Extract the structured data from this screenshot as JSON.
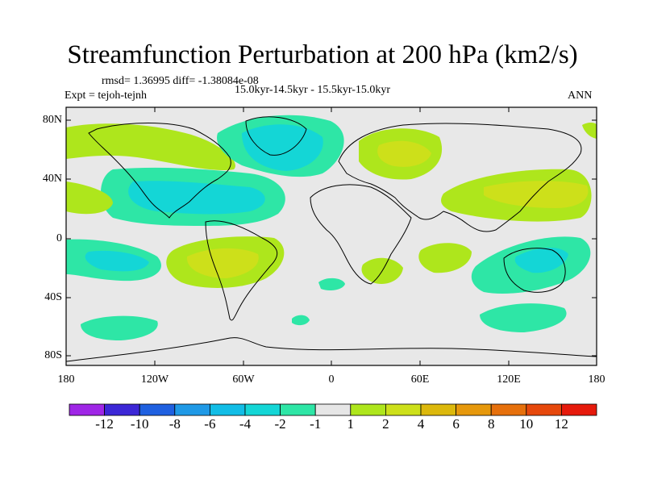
{
  "title": "Streamfunction Perturbation at 200 hPa (km2/s)",
  "stats_line": "rmsd= 1.36995 diff= -1.38084e-08",
  "experiment": "Expt = tejoh-tejnh",
  "time_range": "15.0kyr-14.5kyr - 15.5kyr-15.0kyr",
  "season": "ANN",
  "axes": {
    "y_ticks": [
      "80N",
      "40N",
      "0",
      "40S",
      "80S"
    ],
    "x_ticks": [
      "180",
      "120W",
      "60W",
      "0",
      "60E",
      "120E",
      "180"
    ]
  },
  "colorbar": {
    "colors": [
      "#9f26e6",
      "#3c27d6",
      "#1f60e0",
      "#1f99e6",
      "#12bde6",
      "#14d6d6",
      "#2ee6a6",
      "#e6e6e6",
      "#aee61c",
      "#cde01a",
      "#dcb80c",
      "#e6980c",
      "#e6700c",
      "#e6480c",
      "#e61a0c"
    ],
    "labels": [
      "-12",
      "-10",
      "-8",
      "-6",
      "-4",
      "-2",
      "-1",
      "1",
      "2",
      "4",
      "6",
      "8",
      "10",
      "12"
    ]
  },
  "map_colors": {
    "background": "#e8e8e8",
    "neg_light": "#2ee6a6",
    "neg_mid": "#14d6d6",
    "neg_dark": "#12bde6",
    "pos_light": "#aee61c",
    "pos_mid": "#cde01a"
  }
}
